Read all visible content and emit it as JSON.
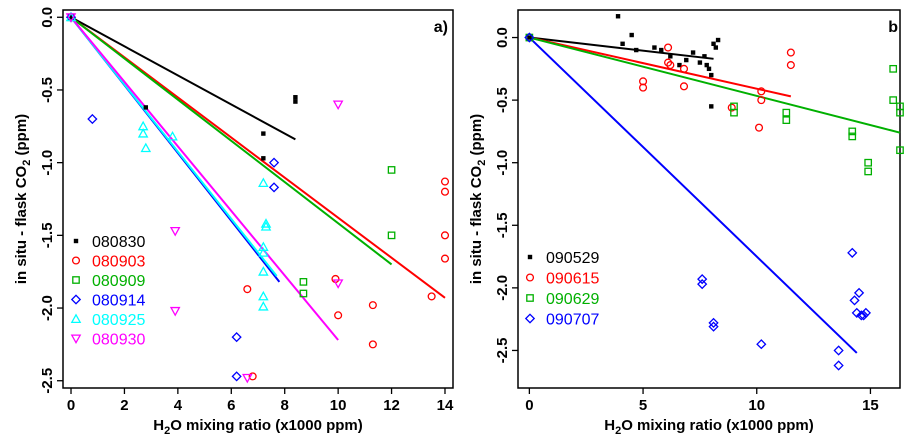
{
  "chart_data": [
    {
      "type": "scatter",
      "panel": "a)",
      "xlabel": "H2O mixing ratio (x1000 ppm)",
      "ylabel": "in situ - flask CO2 (ppm)",
      "xlim": [
        -0.3,
        14.3
      ],
      "ylim": [
        -2.55,
        0.05
      ],
      "xticks": [
        "0",
        "2",
        "4",
        "6",
        "8",
        "10",
        "12",
        "14"
      ],
      "yticks": [
        "0.0",
        "-0.5",
        "-1.0",
        "-1.5",
        "-2.0",
        "-2.5"
      ],
      "legend_position": "bottom-left",
      "series": [
        {
          "name": "080830",
          "color": "#000000",
          "marker": "filled-square",
          "points": [
            [
              0,
              0
            ],
            [
              2.8,
              -0.62
            ],
            [
              7.2,
              -0.8
            ],
            [
              7.2,
              -0.97
            ],
            [
              8.4,
              -0.55
            ],
            [
              8.4,
              -0.58
            ]
          ],
          "fit": [
            [
              0,
              0
            ],
            [
              8.4,
              -0.84
            ]
          ]
        },
        {
          "name": "080903",
          "color": "#ff0000",
          "marker": "circle",
          "points": [
            [
              0,
              0
            ],
            [
              6.6,
              -1.87
            ],
            [
              6.8,
              -2.47
            ],
            [
              9.9,
              -1.8
            ],
            [
              10.0,
              -2.05
            ],
            [
              11.3,
              -1.98
            ],
            [
              11.3,
              -2.25
            ],
            [
              13.5,
              -1.92
            ],
            [
              14.0,
              -1.13
            ],
            [
              14.0,
              -1.2
            ],
            [
              14.0,
              -1.5
            ],
            [
              14.0,
              -1.66
            ]
          ],
          "fit": [
            [
              0,
              0
            ],
            [
              14.0,
              -1.93
            ]
          ]
        },
        {
          "name": "080909",
          "color": "#00b000",
          "marker": "square",
          "points": [
            [
              0,
              0
            ],
            [
              8.7,
              -1.82
            ],
            [
              8.7,
              -1.9
            ],
            [
              12.0,
              -1.05
            ],
            [
              12.0,
              -1.5
            ]
          ],
          "fit": [
            [
              0,
              0
            ],
            [
              12.0,
              -1.7
            ]
          ]
        },
        {
          "name": "080914",
          "color": "#0000ff",
          "marker": "diamond",
          "points": [
            [
              0,
              0
            ],
            [
              0.8,
              -0.7
            ],
            [
              6.2,
              -2.2
            ],
            [
              6.2,
              -2.47
            ],
            [
              7.6,
              -1.0
            ],
            [
              7.6,
              -1.17
            ]
          ],
          "fit": [
            [
              0,
              0
            ],
            [
              7.8,
              -1.82
            ]
          ]
        },
        {
          "name": "080925",
          "color": "#00ffff",
          "marker": "triangle-up",
          "points": [
            [
              0,
              0
            ],
            [
              2.7,
              -0.75
            ],
            [
              2.7,
              -0.8
            ],
            [
              2.8,
              -0.9
            ],
            [
              3.8,
              -0.82
            ],
            [
              7.2,
              -1.14
            ],
            [
              7.3,
              -1.42
            ],
            [
              7.3,
              -1.44
            ],
            [
              7.2,
              -1.58
            ],
            [
              7.2,
              -1.62
            ],
            [
              7.2,
              -1.75
            ],
            [
              7.2,
              -1.92
            ],
            [
              7.2,
              -1.99
            ]
          ],
          "fit": [
            [
              0,
              0
            ],
            [
              7.7,
              -1.78
            ]
          ]
        },
        {
          "name": "080930",
          "color": "#ff00ff",
          "marker": "triangle-down",
          "points": [
            [
              0,
              0
            ],
            [
              3.9,
              -1.47
            ],
            [
              3.9,
              -2.02
            ],
            [
              6.6,
              -2.48
            ],
            [
              10.0,
              -0.6
            ],
            [
              10.0,
              -1.83
            ]
          ],
          "fit": [
            [
              0,
              0
            ],
            [
              10.0,
              -2.22
            ]
          ]
        }
      ]
    },
    {
      "type": "scatter",
      "panel": "b",
      "xlabel": "H2O mixing ratio (x1000 ppm)",
      "ylabel": "in situ - flask CO2 (ppm)",
      "xlim": [
        -0.5,
        16.3
      ],
      "ylim": [
        -2.8,
        0.22
      ],
      "xticks": [
        "0",
        "5",
        "10",
        "15"
      ],
      "yticks": [
        "0.0",
        "-0.5",
        "-1.0",
        "-1.5",
        "-2.0",
        "-2.5"
      ],
      "legend_position": "bottom-left",
      "series": [
        {
          "name": "090529",
          "color": "#000000",
          "marker": "filled-square",
          "points": [
            [
              0,
              0
            ],
            [
              3.9,
              0.17
            ],
            [
              4.1,
              -0.05
            ],
            [
              4.5,
              0.02
            ],
            [
              4.7,
              -0.1
            ],
            [
              5.5,
              -0.08
            ],
            [
              5.8,
              -0.1
            ],
            [
              6.2,
              -0.15
            ],
            [
              6.6,
              -0.22
            ],
            [
              6.9,
              -0.18
            ],
            [
              7.2,
              -0.12
            ],
            [
              7.5,
              -0.2
            ],
            [
              7.7,
              -0.15
            ],
            [
              7.8,
              -0.22
            ],
            [
              7.9,
              -0.25
            ],
            [
              8.0,
              -0.3
            ],
            [
              8.0,
              -0.55
            ],
            [
              8.1,
              -0.05
            ],
            [
              8.2,
              -0.08
            ],
            [
              8.3,
              -0.02
            ]
          ],
          "fit": [
            [
              0,
              0
            ],
            [
              8.1,
              -0.17
            ]
          ]
        },
        {
          "name": "090615",
          "color": "#ff0000",
          "marker": "circle",
          "points": [
            [
              0,
              0
            ],
            [
              5.0,
              -0.35
            ],
            [
              5.0,
              -0.4
            ],
            [
              6.1,
              -0.08
            ],
            [
              6.1,
              -0.2
            ],
            [
              6.2,
              -0.22
            ],
            [
              6.8,
              -0.25
            ],
            [
              6.8,
              -0.39
            ],
            [
              8.9,
              -0.56
            ],
            [
              10.1,
              -0.72
            ],
            [
              10.2,
              -0.43
            ],
            [
              10.2,
              -0.5
            ],
            [
              11.5,
              -0.12
            ],
            [
              11.5,
              -0.22
            ]
          ],
          "fit": [
            [
              0,
              0
            ],
            [
              11.5,
              -0.47
            ]
          ]
        },
        {
          "name": "090629",
          "color": "#00b000",
          "marker": "square",
          "points": [
            [
              0,
              0
            ],
            [
              9.0,
              -0.55
            ],
            [
              9.0,
              -0.6
            ],
            [
              11.3,
              -0.6
            ],
            [
              11.3,
              -0.66
            ],
            [
              14.2,
              -0.75
            ],
            [
              14.2,
              -0.79
            ],
            [
              14.9,
              -1.0
            ],
            [
              14.9,
              -1.07
            ],
            [
              16.0,
              -0.25
            ],
            [
              16.0,
              -0.5
            ],
            [
              16.3,
              -0.55
            ],
            [
              16.3,
              -0.6
            ],
            [
              16.3,
              -0.9
            ]
          ],
          "fit": [
            [
              0,
              0
            ],
            [
              16.3,
              -0.76
            ]
          ]
        },
        {
          "name": "090707",
          "color": "#0000ff",
          "marker": "diamond",
          "points": [
            [
              0,
              0
            ],
            [
              7.6,
              -1.93
            ],
            [
              7.6,
              -1.97
            ],
            [
              8.1,
              -2.28
            ],
            [
              8.1,
              -2.31
            ],
            [
              10.2,
              -2.45
            ],
            [
              13.6,
              -2.5
            ],
            [
              13.6,
              -2.62
            ],
            [
              14.2,
              -1.72
            ],
            [
              14.3,
              -2.1
            ],
            [
              14.4,
              -2.2
            ],
            [
              14.5,
              -2.04
            ],
            [
              14.6,
              -2.22
            ],
            [
              14.7,
              -2.22
            ],
            [
              14.8,
              -2.2
            ]
          ],
          "fit": [
            [
              0,
              0
            ],
            [
              14.4,
              -2.52
            ]
          ]
        }
      ]
    }
  ]
}
